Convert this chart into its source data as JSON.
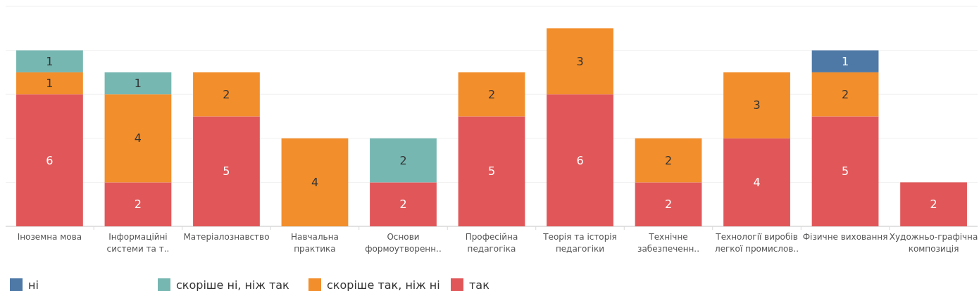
{
  "chart_data": {
    "type": "bar",
    "stacked": true,
    "data_labels": true,
    "grid": "y",
    "tick_labels": "x",
    "legend": "bottom",
    "ylim": [
      0,
      10
    ],
    "yticks": [
      {
        "value": 0,
        "label": null
      },
      {
        "value": 2,
        "label": null
      },
      {
        "value": 4,
        "label": null
      },
      {
        "value": 6,
        "label": null
      },
      {
        "value": 8,
        "label": null
      },
      {
        "value": 10,
        "label": null
      }
    ],
    "categories": [
      "Іноземна мова",
      "Інформаційні\nсистеми та т..",
      "Матеріалознавство",
      "Навчальна\nпрактика",
      "Основи\nформоутворенн..",
      "Професійна\nпедагогіка",
      "Теорія та історія\nпедагогіки",
      "Технічне\nзабезпеченн..",
      "Технології виробів\nлегкої промислов..",
      "Фізичне виховання",
      "Художньо-графічна\nкомпозиція"
    ],
    "series": [
      {
        "name": "так",
        "color": "#e15759",
        "values": [
          6,
          2,
          5,
          null,
          2,
          5,
          6,
          2,
          4,
          5,
          2
        ]
      },
      {
        "name": "скоріше так, ніж ні",
        "color": "#f28e2b",
        "values": [
          1,
          4,
          2,
          4,
          null,
          2,
          3,
          2,
          3,
          2,
          null
        ]
      },
      {
        "name": "скоріше ні, ніж так",
        "color": "#76b7b2",
        "values": [
          1,
          1,
          null,
          null,
          2,
          null,
          null,
          null,
          null,
          null,
          null
        ]
      },
      {
        "name": "ні",
        "color": "#4e79a7",
        "values": [
          null,
          null,
          null,
          null,
          null,
          null,
          null,
          null,
          null,
          1,
          null
        ]
      }
    ]
  }
}
